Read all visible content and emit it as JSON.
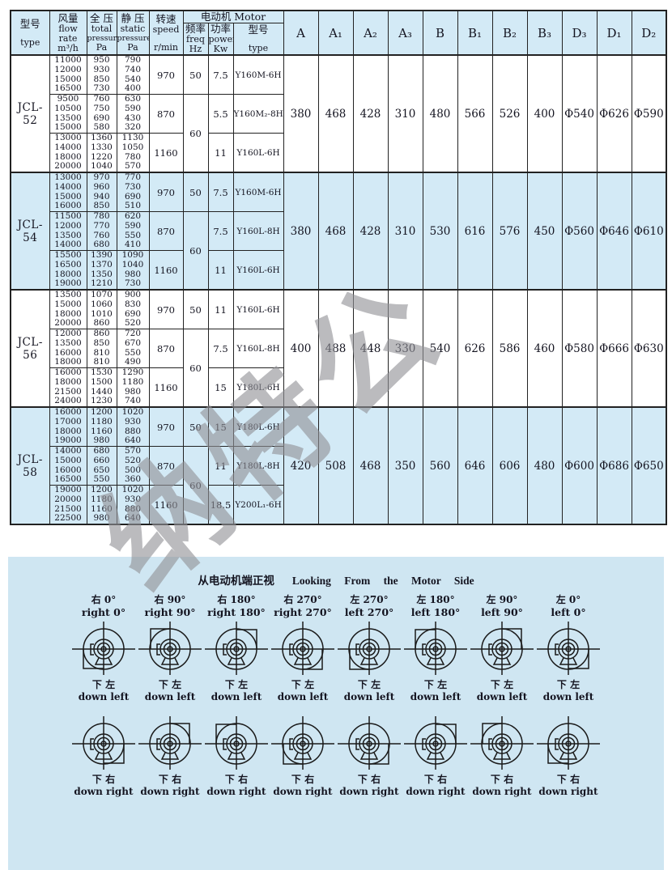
{
  "watermark": "纳特公",
  "header": {
    "type_cn": "型号",
    "type_en": "type",
    "flow_cn": "风量",
    "flow_en1": "flow",
    "flow_en2": "rate",
    "flow_unit": "m³/h",
    "total_cn": "全 压",
    "total_en": "total",
    "total_en2": "pressure",
    "total_unit": "Pa",
    "static_cn": "静 压",
    "static_en": "static",
    "static_en2": "pressure",
    "static_unit": "Pa",
    "speed_cn": "转速",
    "speed_en": "speed",
    "speed_unit": "r/min",
    "motor_group": "电动机 Motor",
    "freq_cn": "频率",
    "freq_en": "freq",
    "freq_unit": "Hz",
    "power_cn": "功率",
    "power_en": "power",
    "power_unit": "Kw",
    "mtype_cn": "型号",
    "mtype_en": "type",
    "dims": [
      "A",
      "A₁",
      "A₂",
      "A₃",
      "B",
      "B₁",
      "B₂",
      "B₃",
      "D₃",
      "D₁",
      "D₂"
    ]
  },
  "blocks": [
    {
      "type": "JCL-52",
      "rows": [
        {
          "flow": [
            "11000",
            "12000",
            "15000",
            "16500"
          ],
          "total": [
            "950",
            "930",
            "850",
            "730"
          ],
          "static": [
            "790",
            "740",
            "540",
            "400"
          ],
          "speed": "970",
          "freq": "50",
          "power": "7.5",
          "motor": "Y160M-6H"
        },
        {
          "flow": [
            "9500",
            "10500",
            "13500",
            "15000"
          ],
          "total": [
            "760",
            "750",
            "690",
            "580"
          ],
          "static": [
            "630",
            "590",
            "430",
            "320"
          ],
          "speed": "870",
          "freq": "60",
          "power": "5.5",
          "motor": "Y160M₂-8H"
        },
        {
          "flow": [
            "13000",
            "14000",
            "18000",
            "20000"
          ],
          "total": [
            "1360",
            "1330",
            "1220",
            "1040"
          ],
          "static": [
            "1130",
            "1050",
            "780",
            "570"
          ],
          "speed": "1160",
          "power": "11",
          "motor": "Y160L-6H"
        }
      ],
      "dims": [
        "380",
        "468",
        "428",
        "310",
        "480",
        "566",
        "526",
        "400",
        "Φ540",
        "Φ626",
        "Φ590"
      ]
    },
    {
      "type": "JCL-54",
      "rows": [
        {
          "flow": [
            "13000",
            "14000",
            "15000",
            "16000"
          ],
          "total": [
            "970",
            "960",
            "940",
            "850"
          ],
          "static": [
            "770",
            "730",
            "690",
            "510"
          ],
          "speed": "970",
          "freq": "50",
          "power": "7.5",
          "motor": "Y160M-6H"
        },
        {
          "flow": [
            "11500",
            "12000",
            "13500",
            "14000"
          ],
          "total": [
            "780",
            "770",
            "760",
            "680"
          ],
          "static": [
            "620",
            "590",
            "550",
            "410"
          ],
          "speed": "870",
          "freq": "60",
          "power": "7.5",
          "motor": "Y160L-8H"
        },
        {
          "flow": [
            "15500",
            "16500",
            "18000",
            "19000"
          ],
          "total": [
            "1390",
            "1370",
            "1350",
            "1210"
          ],
          "static": [
            "1090",
            "1040",
            "980",
            "730"
          ],
          "speed": "1160",
          "power": "11",
          "motor": "Y160L-6H"
        }
      ],
      "dims": [
        "380",
        "468",
        "428",
        "310",
        "530",
        "616",
        "576",
        "450",
        "Φ560",
        "Φ646",
        "Φ610"
      ]
    },
    {
      "type": "JCL-56",
      "rows": [
        {
          "flow": [
            "13500",
            "15000",
            "18000",
            "20000"
          ],
          "total": [
            "1070",
            "1060",
            "1010",
            "860"
          ],
          "static": [
            "900",
            "830",
            "690",
            "520"
          ],
          "speed": "970",
          "freq": "50",
          "power": "11",
          "motor": "Y160L-6H"
        },
        {
          "flow": [
            "12000",
            "13500",
            "16000",
            "18000"
          ],
          "total": [
            "860",
            "850",
            "810",
            "810"
          ],
          "static": [
            "720",
            "670",
            "550",
            "490"
          ],
          "speed": "870",
          "freq": "60",
          "power": "7.5",
          "motor": "Y160L-8H"
        },
        {
          "flow": [
            "16000",
            "18000",
            "21500",
            "24000"
          ],
          "total": [
            "1530",
            "1500",
            "1440",
            "1230"
          ],
          "static": [
            "1290",
            "1180",
            "980",
            "740"
          ],
          "speed": "1160",
          "power": "15",
          "motor": "Y180L-6H"
        }
      ],
      "dims": [
        "400",
        "488",
        "448",
        "330",
        "540",
        "626",
        "586",
        "460",
        "Φ580",
        "Φ666",
        "Φ630"
      ]
    },
    {
      "type": "JCL-58",
      "rows": [
        {
          "flow": [
            "16000",
            "17000",
            "18000",
            "19000"
          ],
          "total": [
            "1200",
            "1180",
            "1160",
            "980"
          ],
          "static": [
            "1020",
            "930",
            "880",
            "640"
          ],
          "speed": "970",
          "freq": "50",
          "power": "15",
          "motor": "Y180L-6H"
        },
        {
          "flow": [
            "14000",
            "15000",
            "16000",
            "16500"
          ],
          "total": [
            "680",
            "660",
            "650",
            "550"
          ],
          "static": [
            "570",
            "520",
            "500",
            "360"
          ],
          "speed": "870",
          "freq": "60",
          "power": "11",
          "motor": "Y180L-8H"
        },
        {
          "flow": [
            "19000",
            "20000",
            "21500",
            "22500"
          ],
          "total": [
            "1200",
            "1180",
            "1160",
            "980"
          ],
          "static": [
            "1020",
            "930",
            "880",
            "640"
          ],
          "speed": "1160",
          "power": "18.5",
          "motor": "Y200L₁-6H"
        }
      ],
      "dims": [
        "420",
        "508",
        "468",
        "350",
        "560",
        "646",
        "606",
        "480",
        "Φ600",
        "Φ686",
        "Φ650"
      ]
    }
  ],
  "panel": {
    "title_cn": "从电动机端正视",
    "title_en": "Looking From the Motor Side",
    "top_row": [
      {
        "cn": "右 0°",
        "en": "right 0°",
        "angle": 0,
        "side": "right"
      },
      {
        "cn": "右 90°",
        "en": "right 90°",
        "angle": 90,
        "side": "right"
      },
      {
        "cn": "右 180°",
        "en": "right 180°",
        "angle": 180,
        "side": "right"
      },
      {
        "cn": "右 270°",
        "en": "right 270°",
        "angle": 270,
        "side": "right"
      },
      {
        "cn": "左 270°",
        "en": "left 270°",
        "angle": 270,
        "side": "left"
      },
      {
        "cn": "左 180°",
        "en": "left 180°",
        "angle": 180,
        "side": "left"
      },
      {
        "cn": "左 90°",
        "en": "left 90°",
        "angle": 90,
        "side": "left"
      },
      {
        "cn": "左 0°",
        "en": "left 0°",
        "angle": 0,
        "side": "left"
      }
    ],
    "row1_bottom_cn": "下 左",
    "row1_bottom_en": "down left",
    "row2_bottom_cn": "下 右",
    "row2_bottom_en": "down right"
  }
}
